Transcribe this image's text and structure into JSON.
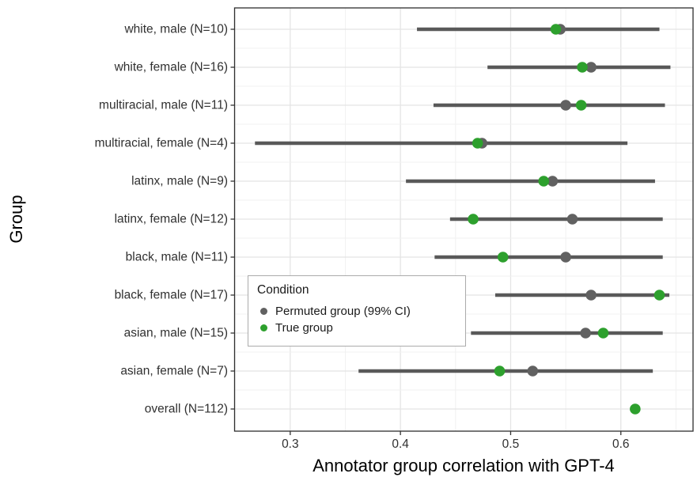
{
  "legend": {
    "title": "Condition",
    "items": [
      {
        "label": "Permuted group (99% CI)",
        "color": "#616161"
      },
      {
        "label": "True group",
        "color": "#2da02d"
      }
    ]
  },
  "colors": {
    "true_green": "#2da02d",
    "permuted_gray": "#616161",
    "ci_bar": "#595959",
    "grid_major": "#e4e4e4",
    "grid_minor": "#f1f1f1",
    "panel_border": "#2e2e2e",
    "tick_mark": "#333333",
    "axis_text": "#303030"
  },
  "chart_data": {
    "type": "scatter",
    "subtype": "dot-plot-with-intervals",
    "xlabel": "Annotator group correlation with GPT-4",
    "ylabel": "Group",
    "xlim": [
      0.25,
      0.6655
    ],
    "x_ticks": [
      0.3,
      0.4,
      0.5,
      0.6
    ],
    "x_minor_ticks": [
      0.25,
      0.35,
      0.45,
      0.55,
      0.65
    ],
    "grid": true,
    "legend_position": "inside-middle-left",
    "series_meta": [
      {
        "name": "Permuted group (99% CI)",
        "color": "#616161",
        "style": "point-with-interval"
      },
      {
        "name": "True group",
        "color": "#2da02d",
        "style": "point"
      }
    ],
    "groups": [
      {
        "label": "white, male (N=10)",
        "ci": [
          0.415,
          0.635
        ],
        "permuted": 0.545,
        "true": 0.541
      },
      {
        "label": "white, female (N=16)",
        "ci": [
          0.479,
          0.645
        ],
        "permuted": 0.573,
        "true": 0.565
      },
      {
        "label": "multiracial, male (N=11)",
        "ci": [
          0.43,
          0.64
        ],
        "permuted": 0.55,
        "true": 0.564
      },
      {
        "label": "multiracial, female (N=4)",
        "ci": [
          0.268,
          0.606
        ],
        "permuted": 0.474,
        "true": 0.47
      },
      {
        "label": "latinx, male (N=9)",
        "ci": [
          0.405,
          0.631
        ],
        "permuted": 0.538,
        "true": 0.53
      },
      {
        "label": "latinx, female (N=12)",
        "ci": [
          0.445,
          0.638
        ],
        "permuted": 0.556,
        "true": 0.466
      },
      {
        "label": "black, male (N=11)",
        "ci": [
          0.431,
          0.638
        ],
        "permuted": 0.55,
        "true": 0.493
      },
      {
        "label": "black, female (N=17)",
        "ci": [
          0.486,
          0.644
        ],
        "permuted": 0.573,
        "true": 0.635
      },
      {
        "label": "asian, male (N=15)",
        "ci": [
          0.464,
          0.638
        ],
        "permuted": 0.568,
        "true": 0.584
      },
      {
        "label": "asian, female (N=7)",
        "ci": [
          0.362,
          0.629
        ],
        "permuted": 0.52,
        "true": 0.49
      },
      {
        "label": "overall (N=112)",
        "ci": null,
        "permuted": null,
        "true": 0.613
      }
    ]
  }
}
